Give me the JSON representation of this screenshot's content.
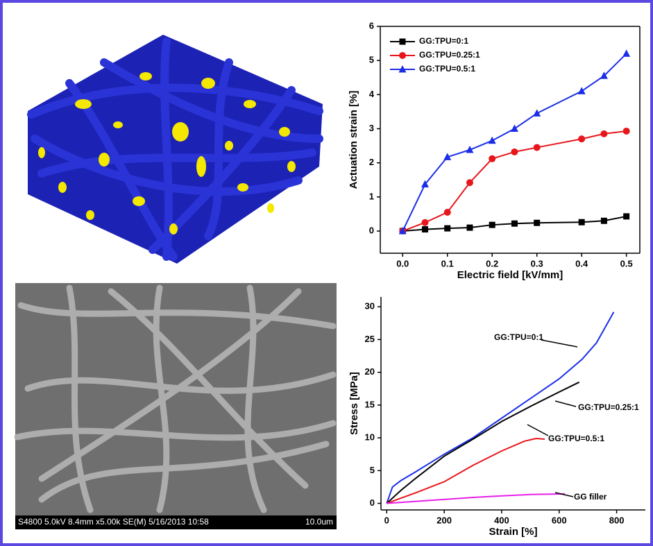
{
  "chart_data": [
    {
      "type": "line",
      "x_label": "Electric field [kV/mm]",
      "y_label": "Actuation strain [%]",
      "x": [
        0,
        0.05,
        0.1,
        0.15,
        0.2,
        0.25,
        0.3,
        0.4,
        0.45,
        0.5
      ],
      "series": [
        {
          "name": "GG:TPU=0:1",
          "color": "#000000",
          "marker": "square",
          "values": [
            0,
            0.05,
            0.08,
            0.1,
            0.18,
            0.22,
            0.24,
            0.26,
            0.3,
            0.43
          ]
        },
        {
          "name": "GG:TPU=0.25:1",
          "color": "#e8151b",
          "marker": "circle",
          "values": [
            0,
            0.25,
            0.55,
            1.42,
            2.12,
            2.32,
            2.45,
            2.7,
            2.85,
            2.93
          ]
        },
        {
          "name": "GG:TPU=0.5:1",
          "color": "#1a2ee8",
          "marker": "triangle",
          "values": [
            0,
            1.37,
            2.17,
            2.38,
            2.65,
            3.0,
            3.45,
            4.1,
            4.55,
            5.2
          ]
        }
      ],
      "xlim": [
        -0.05,
        0.53
      ],
      "ylim": [
        -0.65,
        6
      ],
      "xticks": [
        {
          "value": 0,
          "label": "0.0"
        },
        0.1,
        0.2,
        0.3,
        0.4,
        0.5
      ],
      "yticks": [
        0,
        1,
        2,
        3,
        4,
        5,
        6
      ],
      "legend": "top-left"
    },
    {
      "type": "line",
      "x_label": "Strain [%]",
      "y_label": "Stress [MPa]",
      "series": [
        {
          "name": "GG:TPU=0:1",
          "color": "#1a2ee8",
          "x": [
            0,
            20,
            50,
            100,
            200,
            300,
            400,
            500,
            600,
            680,
            730,
            790
          ],
          "values": [
            0,
            2.5,
            3.5,
            4.8,
            7.5,
            10,
            13,
            16,
            19,
            22,
            24.5,
            29.2
          ]
        },
        {
          "name": "GG:TPU=0.25:1",
          "color": "#000000",
          "x": [
            0,
            50,
            100,
            200,
            300,
            400,
            500,
            600,
            670
          ],
          "values": [
            0,
            2,
            3.8,
            7.2,
            9.8,
            12.5,
            14.8,
            17,
            18.5
          ]
        },
        {
          "name": "GG:TPU=0.5:1",
          "color": "#e8151b",
          "x": [
            0,
            50,
            100,
            200,
            300,
            400,
            480,
            520,
            550
          ],
          "values": [
            0,
            0.8,
            1.6,
            3.3,
            5.8,
            8,
            9.5,
            9.9,
            9.8
          ]
        },
        {
          "name": "GG filler",
          "color": "#e81ee8",
          "x": [
            0,
            100,
            200,
            300,
            400,
            500,
            620
          ],
          "values": [
            0,
            0.3,
            0.6,
            0.9,
            1.15,
            1.35,
            1.45
          ]
        }
      ],
      "xlim": [
        -20,
        900
      ],
      "ylim": [
        -1,
        31.5
      ],
      "xticks": [
        0,
        200,
        400,
        600,
        800
      ],
      "yticks": [
        0,
        5,
        10,
        15,
        20,
        25,
        30
      ],
      "legend": false
    }
  ],
  "sem_caption": {
    "info": "S4800 5.0kV 8.4mm x5.00k SE(M) 5/16/2013 10:58",
    "scale": "10.0um"
  }
}
